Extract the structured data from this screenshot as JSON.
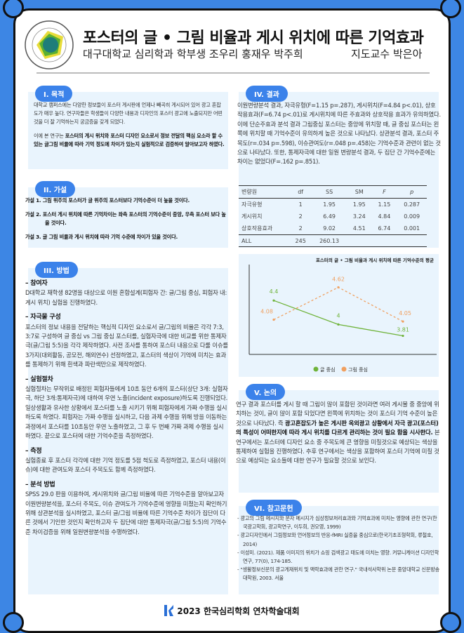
{
  "header": {
    "title": "포스터의 글 • 그림 비율과 게시 위치에 따른 기억효과",
    "authors": "대구대학교 심리학과 학부생 조우리 홍재우 박주희",
    "advisor": "지도교수 박은아",
    "logo_text": "대구대학교 DAEGU UNIVERSITY 1956"
  },
  "purpose": {
    "label": "I. 목적",
    "p1": "대학교 캠퍼스에는 다양한 정보들이 포스터 게시판에 언제나 빼곡히 게시되어 있어 광고 혼잡도가 매우 높다. 연구자들은 학생들이 다양한 내용과 디자인의 포스터 광고에 노출되지만 어떤 것을 더 잘 기억하는지 궁금증을 갖게 되었다.",
    "p2_plain": "이에 본 연구는 ",
    "p2_bold": "포스터의 게시 위치와 포스터 디자인 요소로서 정보 전달의 핵심 요소라 할 수 있는 글그림 비율에 따라 기억 정도에 차이가 있는지 실험적으로 검증하여 알아보고자 하였다."
  },
  "hypothesis": {
    "label": "II. 가설",
    "items": [
      "가설 1. 그림 위주의 포스터가 글 위주의 포스터보다 기억수준이 더 높을 것이다.",
      "가설 2. 포스터 게시 위치에 따른 기억차이는 좌측 포스터의 기억수준이 중앙, 우측 포스터 보다 높을 것이다.",
      "가설 3. 글 그림 비율과 게시 위치에 따라 기억 수준에 차이가 있을 것이다."
    ]
  },
  "method": {
    "label": "III. 방법",
    "sections": [
      {
        "title": "– 참여자",
        "text": "D대학교 재학생 82명을 대상으로 이원 혼합설계(피험자 간: 글/그림 중심, 피험자 내:게시 위치) 실험을 진행하였다."
      },
      {
        "title": "– 자극물 구성",
        "text": "포스터의 정보 내용을 전달하는 핵심적 디자인 요소로서 글/그림의 비율은 각각 7:3, 3:7로 구성하여 글 중심 vs 그림 중심 포스터를, 실험자극에 대한 비교를 위한 통제자극(글/그림 5:5)을 각각 제작하였다. 사전 조사를 통하여 포스터 내용으로 다룰 이슈를 3가지(대외활동, 공모전, 해외연수) 선정하였고, 포스터의 색상이 기억에 미치는 효과를 통제하기 위해 흰색과 파란색만으로 제작하였다."
      },
      {
        "title": "– 실험절차",
        "text": "실험절차는 무작위로 배정된 피험자들에게 10초 동안 6개의 포스터(상단 3개: 실험자극, 하단 3개:통제자극)에 대하여 우연 노출(incident exposure)하도록 진행되었다. 일상생활과 유사한 상황에서 포스터를 노출 시키기 위해 피험자에게 가짜 수행을 실시하도록 하였다. 피험자는 가짜 수행을 실시하고, 다음 과제 수행을 위해 방을 이동하는 과정에서 포스터를 10초동안 우연 노출하였고, 그 후 두 번째 가짜 과제 수행을 실시 하였다. 끝으로 포스터에 대한 기억수준을 측정하였다."
      },
      {
        "title": "– 측정",
        "text": "실험종료 후 포스터 각각에 대한 기억 정도를 5점 척도로 측정하였고, 포스터 내용(이슈)에 대한 관여도와 포스터 주목도도 함께 측정하였다."
      },
      {
        "title": "– 분석 방법",
        "text": "SPSS 29.0 판을 이용하여, 게시위치와 글/그림 비율에 따른 기억수준을 알아보고자 이원변량분석을, 포스터 주목도, 이슈 관여도가 기억수준에 영향을 미쳤는지 확인하기 위해 상관분석을 실시하였고, 포스터 글/그림 비율에 따른 기억수준 차이가 집단이 다른 것에서 기인한 것인지 확인하고자 두 집단에 대한 통제자극(글/그림 5:5)의 기억수준 차이검증을 위해 일원변량분석을 수행하였다."
      }
    ]
  },
  "results": {
    "label": "IV. 결과",
    "text": "이원변량분석 결과, 자극유형(F=1.15 p=.287), 게시위치(F=4.84 p<.01), 상호작용효과(F=6.74 p<.01)로 게시위치에 따른 주효과와 상호작용 효과가 유의하였다. 이에 단순주효과 분석 결과 그림중심 포스터는 중앙에 위치할 때, 글 중심 포스터는 왼쪽에 위치할 때 기억수준이 유의하게 높은 것으로 나타났다. 상관분석 결과, 포스터 주목도(r=.034 p=.598), 이슈관여도(r=.048 p=.458)는 기억수준과 관련이 없는 것으로 나타났다. 또한, 통제자극에 대한 일원 변량분석 결과, 두 집단 간 기억수준에는 차이는 없었다(F=.162 p=.851).",
    "table": {
      "headers": [
        "변량원",
        "df",
        "SS",
        "SM",
        "F",
        "p"
      ],
      "rows": [
        [
          "자극유형",
          "1",
          "1.95",
          "1.95",
          "1.15",
          "0.287"
        ],
        [
          "게시위치",
          "2",
          "6.49",
          "3.24",
          "4.84",
          "0.009"
        ],
        [
          "상호작용효과",
          "2",
          "9.02",
          "4.51",
          "6.74",
          "0.001"
        ],
        [
          "ALL",
          "245",
          "260.13",
          "",
          "",
          ""
        ]
      ]
    }
  },
  "chart_data": {
    "type": "line",
    "title": "포스터의 글 • 그림 비율과 게시 위치에 따른 기억수준의 평균",
    "categories": [
      "",
      "",
      ""
    ],
    "ylim": [
      3.5,
      5.0
    ],
    "grid": false,
    "legend": "bottom",
    "series": [
      {
        "name": "글 중심",
        "values": [
          4.4,
          4,
          3.81
        ],
        "color": "#6fb33a",
        "style": "solid"
      },
      {
        "name": "그림 중심",
        "values": [
          4.08,
          4.62,
          4.05
        ],
        "color": "#f0a060",
        "style": "dashed"
      }
    ]
  },
  "discussion": {
    "label": "V. 논의",
    "p_plain1": "연구 결과 포스터를 게시 할 때 그림이 많이 포함된 것이라면 여러 게시물 중 중앙에 위치하는 것이, 글이 많이 포함 되었다면 왼쪽에 위치하는 것이 포스터 기억 수준이 높은 것으로 나타났다. 즉 ",
    "p_bold": "광고혼잡도가 높은 게시판 옥외광고 상황에서 자극 광고(포스터)의 특성이 어떠한지에 따라 게시 위치를 다르게 관리하는 것이 필요 함을 시사한다.",
    "p_plain2": " 본 연구에서는 포스터에 디자인 요소 중 주목도에 큰 영향을 미칠것으로 예상되는 색상을 통제하여 실험을 진행하였다. 추후 연구에서는 색상을 포함하여 포스터 기억에 미칠 것으로 예상되는 요소들에 대한 연구가 필요할 것으로 보인다."
  },
  "references": {
    "label": "VI. 참고문헌",
    "items": [
      "- 광고의 그림 메시지와 문자 메시지가 심상정보처리효과와 기억효과에 미치는 영향에 관한 연구(한국광고학회, 광고학연구, 이두희, 권오영, 1999)",
      "- 광고디자인에서 그림정보와 언어정보의 반응-fMRI 실증을 중심으로(한국기초조형학회, 류철호, 2014)",
      "- 이성미. (2021). 제품 이미지의 위치가 쇼핑 검색광고 태도에 미치는 영향. 커뮤니케이션 디자인학연구, 77(0), 174-185.",
      "- \"생활정보신문의 광고게재위치 및 맥락효과에 관한 연구.\" 국내석사학위 논문 중앙대학교 신문방송대학원, 2003. 서울"
    ]
  },
  "footer": {
    "text": "2023 한국심리학회 연차학술대회"
  }
}
